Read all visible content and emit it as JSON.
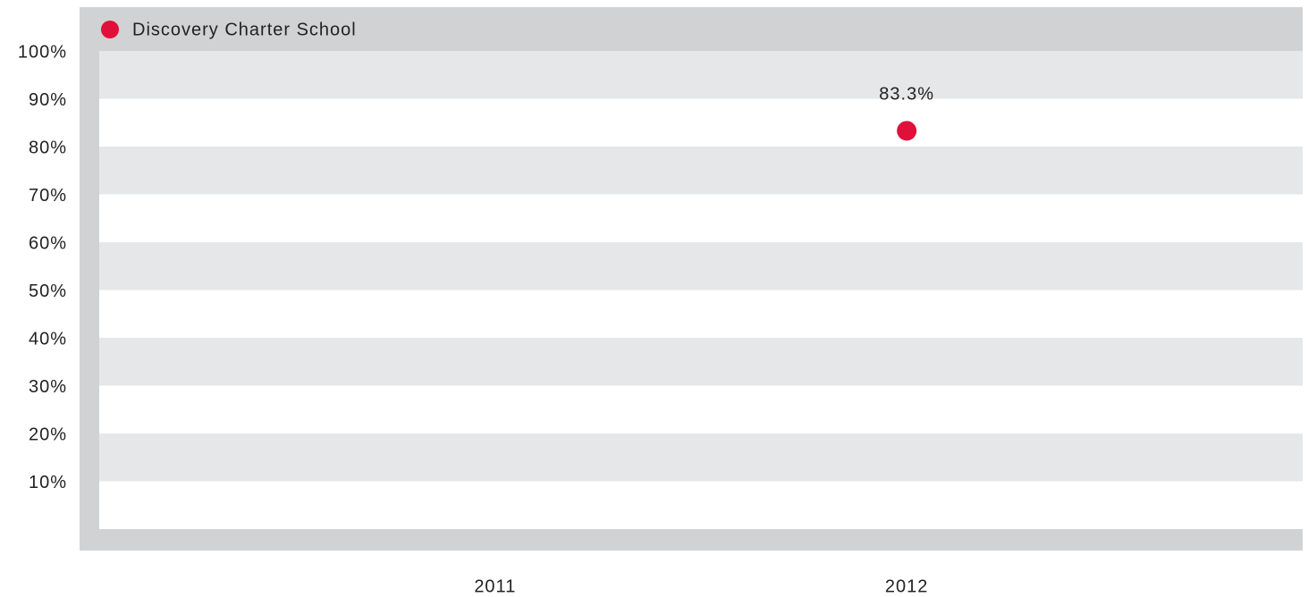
{
  "chart_data": {
    "type": "scatter",
    "categories": [
      "2011",
      "2012"
    ],
    "series": [
      {
        "name": "Discovery Charter School",
        "color": "#e0103a",
        "values": [
          null,
          83.3
        ],
        "value_labels": [
          null,
          "83.3%"
        ]
      }
    ],
    "ylim": [
      0,
      100
    ],
    "yticks": [
      {
        "value": 10,
        "label": "10%"
      },
      {
        "value": 20,
        "label": "20%"
      },
      {
        "value": 30,
        "label": "30%"
      },
      {
        "value": 40,
        "label": "40%"
      },
      {
        "value": 50,
        "label": "50%"
      },
      {
        "value": 60,
        "label": "60%"
      },
      {
        "value": 70,
        "label": "70%"
      },
      {
        "value": 80,
        "label": "80%"
      },
      {
        "value": 90,
        "label": "90%"
      },
      {
        "value": 100,
        "label": "100%"
      }
    ],
    "grid": true,
    "legend": "top-left"
  }
}
